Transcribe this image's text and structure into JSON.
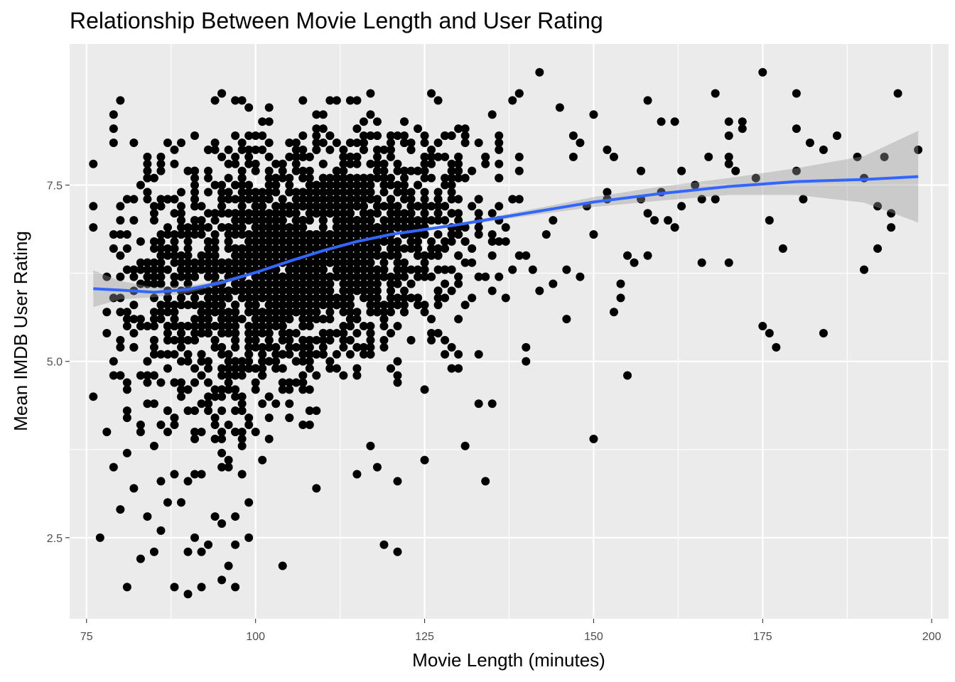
{
  "chart_data": {
    "type": "scatter",
    "title": "Relationship Between Movie Length and User Rating",
    "xlabel": "Movie Length (minutes)",
    "ylabel": "Mean IMDB User Rating",
    "xlim": [
      72.5,
      202.5
    ],
    "ylim": [
      1.35,
      9.5
    ],
    "x_ticks": [
      75,
      100,
      125,
      150,
      175,
      200
    ],
    "x_tick_labels": [
      "75",
      "100",
      "125",
      "150",
      "175",
      "200"
    ],
    "y_ticks": [
      2.5,
      5.0,
      7.5
    ],
    "y_tick_labels": [
      "2.5",
      "5.0",
      "7.5"
    ],
    "grid": true,
    "legend": "none",
    "colors": {
      "panel": "#EBEBEB",
      "grid": "#FFFFFF",
      "points": "#000000",
      "smooth_line": "#3366FF",
      "smooth_band": "#999999"
    },
    "points": [
      [
        76,
        4.5
      ],
      [
        76,
        6.9
      ],
      [
        76,
        7.2
      ],
      [
        76,
        7.8
      ],
      [
        77,
        2.5
      ],
      [
        78,
        4.0
      ],
      [
        79,
        3.5
      ],
      [
        80,
        2.9
      ],
      [
        81,
        1.8
      ],
      [
        81,
        3.7
      ],
      [
        82,
        3.2
      ],
      [
        83,
        2.2
      ],
      [
        84,
        2.8
      ],
      [
        85,
        2.3
      ],
      [
        86,
        2.6
      ],
      [
        86,
        3.3
      ],
      [
        87,
        3.0
      ],
      [
        88,
        1.8
      ],
      [
        88,
        3.4
      ],
      [
        89,
        3.0
      ],
      [
        90,
        1.7
      ],
      [
        90,
        2.3
      ],
      [
        91,
        2.5
      ],
      [
        92,
        1.8
      ],
      [
        92,
        2.3
      ],
      [
        93,
        2.4
      ],
      [
        94,
        2.8
      ],
      [
        95,
        2.7
      ],
      [
        95,
        1.9
      ],
      [
        96,
        2.1
      ],
      [
        97,
        1.8
      ],
      [
        97,
        2.4
      ],
      [
        97,
        2.8
      ],
      [
        99,
        2.5
      ],
      [
        104,
        2.1
      ],
      [
        109,
        3.2
      ],
      [
        115,
        3.4
      ],
      [
        117,
        3.8
      ],
      [
        118,
        3.5
      ],
      [
        119,
        2.4
      ],
      [
        121,
        2.3
      ],
      [
        121,
        3.3
      ],
      [
        125,
        3.6
      ],
      [
        125,
        4.6
      ],
      [
        131,
        3.8
      ],
      [
        134,
        3.3
      ],
      [
        133,
        4.4
      ],
      [
        135,
        4.4
      ],
      [
        140,
        5.0
      ],
      [
        140,
        5.2
      ],
      [
        150,
        3.9
      ],
      [
        155,
        4.8
      ],
      [
        146,
        5.6
      ],
      [
        153,
        5.7
      ],
      [
        158,
        6.5
      ],
      [
        166,
        6.4
      ],
      [
        170,
        6.4
      ],
      [
        175,
        5.5
      ],
      [
        176,
        5.4
      ],
      [
        177,
        5.2
      ],
      [
        184,
        5.4
      ],
      [
        190,
        6.3
      ],
      [
        192,
        6.6
      ],
      [
        194,
        6.9
      ],
      [
        176,
        7.0
      ],
      [
        178,
        6.6
      ],
      [
        192,
        7.2
      ],
      [
        194,
        7.1
      ],
      [
        195,
        8.8
      ],
      [
        198,
        8.0
      ],
      [
        193,
        7.9
      ],
      [
        190,
        7.6
      ],
      [
        189,
        7.9
      ],
      [
        186,
        8.2
      ],
      [
        184,
        8.0
      ],
      [
        182,
        8.1
      ],
      [
        180,
        8.3
      ],
      [
        180,
        8.8
      ],
      [
        180,
        7.7
      ],
      [
        181,
        7.3
      ],
      [
        174,
        7.6
      ],
      [
        172,
        8.4
      ],
      [
        172,
        8.3
      ],
      [
        170,
        8.4
      ],
      [
        170,
        8.2
      ],
      [
        170,
        7.9
      ],
      [
        170,
        7.8
      ],
      [
        171,
        7.7
      ],
      [
        168,
        8.8
      ],
      [
        167,
        7.9
      ],
      [
        165,
        7.5
      ],
      [
        166,
        7.3
      ],
      [
        163,
        7.7
      ],
      [
        163,
        7.2
      ],
      [
        161,
        7.0
      ],
      [
        162,
        6.9
      ],
      [
        160,
        7.4
      ],
      [
        160,
        8.4
      ],
      [
        162,
        8.4
      ],
      [
        159,
        7.0
      ],
      [
        158,
        8.7
      ],
      [
        157,
        7.7
      ],
      [
        157,
        7.3
      ],
      [
        155,
        6.5
      ],
      [
        156,
        6.4
      ],
      [
        154,
        6.1
      ],
      [
        154,
        5.9
      ],
      [
        152,
        7.4
      ],
      [
        152,
        7.3
      ],
      [
        153,
        7.9
      ],
      [
        152,
        8.0
      ],
      [
        150,
        8.5
      ],
      [
        149,
        7.2
      ],
      [
        148,
        8.1
      ],
      [
        147,
        8.2
      ],
      [
        145,
        8.6
      ],
      [
        146,
        6.3
      ],
      [
        148,
        6.2
      ],
      [
        142,
        9.1
      ],
      [
        175,
        9.1
      ],
      [
        168,
        7.3
      ],
      [
        158,
        7.1
      ],
      [
        150,
        6.8
      ],
      [
        147,
        7.9
      ]
    ],
    "dense_region": {
      "x_range": [
        78,
        148
      ],
      "rating_center": [
        6.0,
        7.2
      ],
      "approx_point_count": 2200
    },
    "smooth": {
      "method": "loess",
      "x": [
        76,
        80,
        85,
        90,
        95,
        100,
        105,
        110,
        115,
        120,
        125,
        130,
        140,
        150,
        160,
        170,
        180,
        190,
        198
      ],
      "y": [
        6.03,
        6.01,
        5.98,
        6.02,
        6.12,
        6.26,
        6.42,
        6.57,
        6.7,
        6.8,
        6.87,
        6.94,
        7.1,
        7.26,
        7.38,
        7.48,
        7.55,
        7.58,
        7.62
      ],
      "ymin": [
        5.77,
        5.88,
        5.91,
        5.97,
        6.09,
        6.24,
        6.4,
        6.55,
        6.68,
        6.78,
        6.85,
        6.92,
        7.06,
        7.19,
        7.28,
        7.36,
        7.36,
        7.25,
        6.97
      ],
      "ymax": [
        6.29,
        6.14,
        6.05,
        6.07,
        6.15,
        6.28,
        6.44,
        6.59,
        6.72,
        6.82,
        6.89,
        6.96,
        7.14,
        7.33,
        7.48,
        7.6,
        7.74,
        7.91,
        8.27
      ]
    }
  }
}
